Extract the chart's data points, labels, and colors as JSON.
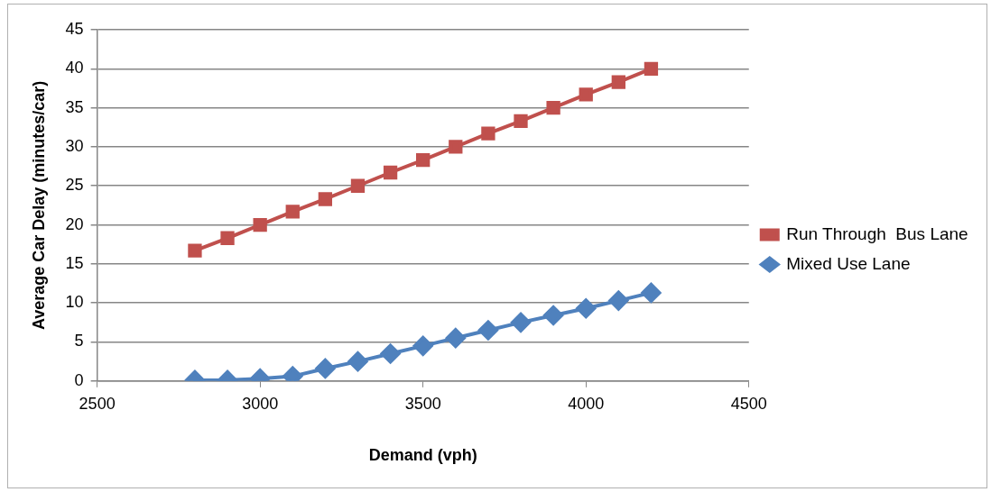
{
  "chart_data": {
    "type": "line",
    "xlabel": "Demand (vph)",
    "ylabel": "Average Car Delay (minutes/car)",
    "x": [
      2800,
      2900,
      3000,
      3100,
      3200,
      3300,
      3400,
      3500,
      3600,
      3700,
      3800,
      3900,
      4000,
      4100,
      4200
    ],
    "series": [
      {
        "name": "Run Through  Bus Lane",
        "color": "#c0504d",
        "marker": "square",
        "values": [
          16.7,
          18.3,
          20,
          21.7,
          23.3,
          25,
          26.7,
          28.3,
          30,
          31.7,
          33.3,
          35,
          36.7,
          38.3,
          40
        ]
      },
      {
        "name": "Mixed Use Lane",
        "color": "#4f81bd",
        "marker": "diamond",
        "values": [
          0.1,
          0.1,
          0.3,
          0.6,
          1.6,
          2.5,
          3.5,
          4.5,
          5.5,
          6.5,
          7.5,
          8.4,
          9.3,
          10.3,
          11.3
        ]
      }
    ],
    "xlim": [
      2500,
      4500
    ],
    "xticks": [
      2500,
      3000,
      3500,
      4000,
      4500
    ],
    "ylim": [
      0,
      45
    ],
    "yticks": [
      0,
      5,
      10,
      15,
      20,
      25,
      30,
      35,
      40,
      45
    ],
    "grid": "y",
    "legend": "right",
    "line_style": "solid"
  }
}
